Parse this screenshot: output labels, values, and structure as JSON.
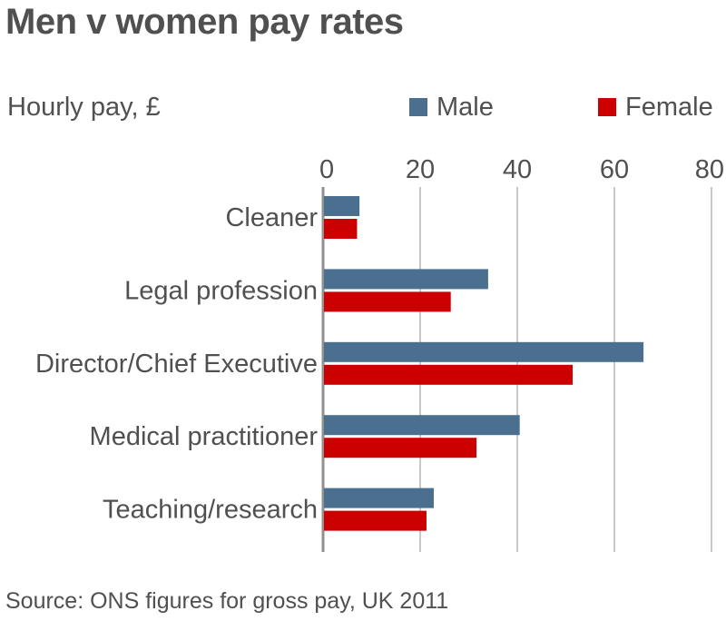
{
  "chart_data": {
    "type": "bar",
    "orientation": "horizontal",
    "title": "Men v women pay rates",
    "unit_label": "Hourly pay, £",
    "categories": [
      "Cleaner",
      "Legal profession",
      "Director/Chief Executive",
      "Medical practitioner",
      "Teaching/research"
    ],
    "series": [
      {
        "name": "Male",
        "color": "#4a6f8f",
        "values": [
          7.5,
          34,
          66,
          40.5,
          22.8
        ]
      },
      {
        "name": "Female",
        "color": "#cc0000",
        "values": [
          7,
          26.3,
          51.4,
          31.6,
          21.3
        ]
      }
    ],
    "x_ticks": [
      "0",
      "20",
      "40",
      "60",
      "80"
    ],
    "xlim": [
      0,
      80
    ],
    "grid": true,
    "legend_position": "top-right",
    "source": "Source: ONS figures for gross pay, UK 2011"
  }
}
